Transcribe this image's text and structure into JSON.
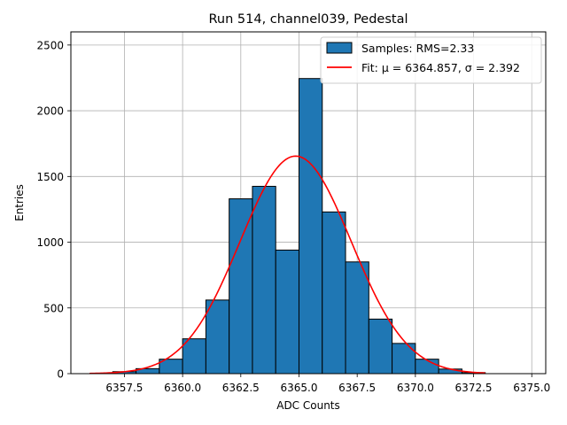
{
  "chart_data": {
    "type": "bar",
    "title": "Run 514, channel039, Pedestal",
    "xlabel": "ADC Counts",
    "ylabel": "Entries",
    "xlim": [
      6355.2,
      6375.6
    ],
    "ylim": [
      0,
      2600
    ],
    "grid": true,
    "legend_position": "top-right",
    "x_ticks": [
      {
        "value": 6357.5,
        "label": "6357.5"
      },
      {
        "value": 6360.0,
        "label": "6360.0"
      },
      {
        "value": 6362.5,
        "label": "6362.5"
      },
      {
        "value": 6365.0,
        "label": "6365.0"
      },
      {
        "value": 6367.5,
        "label": "6367.5"
      },
      {
        "value": 6370.0,
        "label": "6370.0"
      },
      {
        "value": 6372.5,
        "label": "6372.5"
      },
      {
        "value": 6375.0,
        "label": "6375.0"
      }
    ],
    "y_ticks": [
      {
        "value": 0,
        "label": "0"
      },
      {
        "value": 500,
        "label": "500"
      },
      {
        "value": 1000,
        "label": "1000"
      },
      {
        "value": 1500,
        "label": "1500"
      },
      {
        "value": 2000,
        "label": "2000"
      },
      {
        "value": 2500,
        "label": "2500"
      }
    ],
    "histogram": {
      "name": "Samples: RMS=2.33",
      "color": "#1f77b4",
      "edge_color": "#000000",
      "bins": [
        {
          "from": 6357,
          "to": 6358,
          "count": 15
        },
        {
          "from": 6358,
          "to": 6359,
          "count": 38
        },
        {
          "from": 6359,
          "to": 6360,
          "count": 110
        },
        {
          "from": 6360,
          "to": 6361,
          "count": 265
        },
        {
          "from": 6361,
          "to": 6362,
          "count": 560
        },
        {
          "from": 6362,
          "to": 6363,
          "count": 1330
        },
        {
          "from": 6363,
          "to": 6364,
          "count": 1425
        },
        {
          "from": 6364,
          "to": 6365,
          "count": 940
        },
        {
          "from": 6365,
          "to": 6366,
          "count": 2245
        },
        {
          "from": 6366,
          "to": 6367,
          "count": 1230
        },
        {
          "from": 6367,
          "to": 6368,
          "count": 850
        },
        {
          "from": 6368,
          "to": 6369,
          "count": 415
        },
        {
          "from": 6369,
          "to": 6370,
          "count": 230
        },
        {
          "from": 6370,
          "to": 6371,
          "count": 110
        },
        {
          "from": 6371,
          "to": 6372,
          "count": 35
        },
        {
          "from": 6372,
          "to": 6373,
          "count": 8
        }
      ]
    },
    "fit": {
      "name": "Fit: μ = 6364.857, σ = 2.392",
      "type": "gaussian",
      "mu": 6364.857,
      "sigma": 2.392,
      "amplitude": 1655,
      "x_range": [
        6356,
        6373
      ],
      "color": "#ff0000"
    }
  }
}
